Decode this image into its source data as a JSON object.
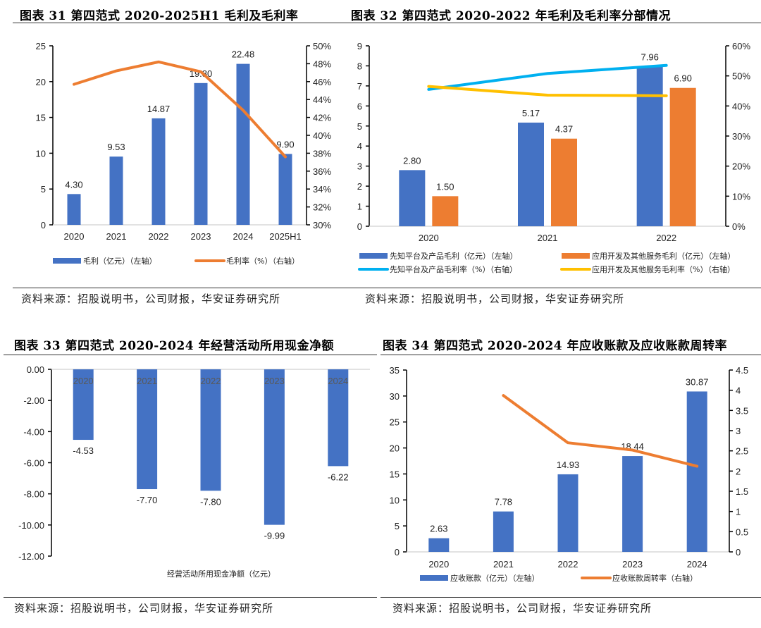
{
  "charts": [
    {
      "id": "fig31",
      "title": "图表 31 第四范式 2020-2025H1 毛利及毛利率",
      "source": "资料来源：招股说明书，公司财报，华安证券研究所"
    },
    {
      "id": "fig32",
      "title": "图表 32 第四范式 2020-2022 年毛利及毛利率分部情况",
      "source": "资料来源：招股说明书，公司财报，华安证券研究所"
    },
    {
      "id": "fig33",
      "title": "图表 33 第四范式 2020-2024 年经营活动所用现金净额",
      "source": "资料来源：招股说明书，公司财报，华安证券研究所"
    },
    {
      "id": "fig34",
      "title": "图表 34 第四范式 2020-2024 年应收账款及应收账款周转率",
      "source": "资料来源：招股说明书，公司财报，华安证券研究所"
    }
  ],
  "colors": {
    "blue_bar": "#4472C4",
    "orange": "#ED7D31",
    "cyan_line": "#00B0F0",
    "yellow_line": "#FFC000",
    "axis": "#000000",
    "baseline": "#D9D9D9"
  },
  "chart_data": [
    {
      "type": "bar",
      "title": "图表 31 第四范式 2020-2025H1 毛利及毛利率",
      "categories": [
        "2020",
        "2021",
        "2022",
        "2023",
        "2024",
        "2025H1"
      ],
      "series": [
        {
          "name": "毛利（亿元）（左轴）",
          "type": "bar",
          "axis": "left",
          "values": [
            4.3,
            9.53,
            14.87,
            19.8,
            22.48,
            9.9
          ],
          "labels": [
            "4.30",
            "9.53",
            "14.87",
            "19.80",
            "22.48",
            "9.90"
          ]
        },
        {
          "name": "毛利率（%）（右轴）",
          "type": "line",
          "axis": "right",
          "values": [
            45.7,
            47.2,
            48.2,
            47.1,
            42.8,
            37.6
          ]
        }
      ],
      "left_axis": {
        "ylim": [
          0,
          25
        ],
        "ticks": [
          "0",
          "5",
          "10",
          "15",
          "20",
          "25"
        ]
      },
      "right_axis": {
        "ylim": [
          30,
          50
        ],
        "ticks": [
          "30%",
          "32%",
          "34%",
          "36%",
          "38%",
          "40%",
          "42%",
          "44%",
          "46%",
          "48%",
          "50%"
        ]
      },
      "legend": "bottom"
    },
    {
      "type": "bar",
      "title": "图表 32 第四范式 2020-2022 年毛利及毛利率分部情况",
      "categories": [
        "2020",
        "2021",
        "2022"
      ],
      "series": [
        {
          "name": "先知平台及产品毛利（亿元）（左轴）",
          "type": "bar",
          "axis": "left",
          "values": [
            2.8,
            5.17,
            7.96
          ],
          "labels": [
            "2.80",
            "5.17",
            "7.96"
          ]
        },
        {
          "name": "应用开发及其他服务毛利（亿元）（左轴）",
          "type": "bar",
          "axis": "left",
          "values": [
            1.5,
            4.37,
            6.9
          ],
          "labels": [
            "1.50",
            "4.37",
            "6.90"
          ]
        },
        {
          "name": "先知平台及产品毛利率（%）（右轴）",
          "type": "line",
          "axis": "right",
          "values": [
            45.5,
            50.8,
            53.5
          ]
        },
        {
          "name": "应用开发及其他服务毛利率（%）（右轴）",
          "type": "line",
          "axis": "right",
          "values": [
            46.5,
            43.6,
            43.4
          ]
        }
      ],
      "left_axis": {
        "ylim": [
          0,
          9
        ],
        "ticks": [
          "0",
          "1",
          "2",
          "3",
          "4",
          "5",
          "6",
          "7",
          "8",
          "9"
        ]
      },
      "right_axis": {
        "ylim": [
          0,
          60
        ],
        "ticks": [
          "0%",
          "10%",
          "20%",
          "30%",
          "40%",
          "50%",
          "60%"
        ]
      },
      "legend": "bottom"
    },
    {
      "type": "bar",
      "title": "图表 33 第四范式 2020-2024 年经营活动所用现金净额",
      "categories": [
        "2020",
        "2021",
        "2022",
        "2023",
        "2024"
      ],
      "series": [
        {
          "name": "经营活动所用现金净额（亿元）",
          "type": "bar",
          "axis": "left",
          "values": [
            -4.53,
            -7.7,
            -7.8,
            -9.99,
            -6.22
          ],
          "labels": [
            "-4.53",
            "-7.70",
            "-7.80",
            "-9.99",
            "-6.22"
          ]
        }
      ],
      "left_axis": {
        "ylim": [
          -12,
          0
        ],
        "ticks": [
          "-12.00",
          "-10.00",
          "-8.00",
          "-6.00",
          "-4.00",
          "-2.00",
          "0.00"
        ]
      },
      "xlabel": "经营活动所用现金净额（亿元）",
      "legend": "none"
    },
    {
      "type": "bar",
      "title": "图表 34 第四范式 2020-2024 年应收账款及应收账款周转率",
      "categories": [
        "2020",
        "2021",
        "2022",
        "2023",
        "2024"
      ],
      "series": [
        {
          "name": "应收账款（亿元）（左轴）",
          "type": "bar",
          "axis": "left",
          "values": [
            2.63,
            7.78,
            14.93,
            18.44,
            30.87
          ],
          "labels": [
            "2.63",
            "7.78",
            "14.93",
            "18.44",
            "30.87"
          ]
        },
        {
          "name": "应收账款周转率（右轴）",
          "type": "line",
          "axis": "right",
          "values": [
            null,
            3.87,
            2.7,
            2.52,
            2.12
          ]
        }
      ],
      "left_axis": {
        "ylim": [
          0,
          35
        ],
        "ticks": [
          "0",
          "5",
          "10",
          "15",
          "20",
          "25",
          "30",
          "35"
        ]
      },
      "right_axis": {
        "ylim": [
          0,
          4.5
        ],
        "ticks": [
          "0",
          "0.5",
          "1",
          "1.5",
          "2",
          "2.5",
          "3",
          "3.5",
          "4",
          "4.5"
        ]
      },
      "legend": "bottom"
    }
  ]
}
